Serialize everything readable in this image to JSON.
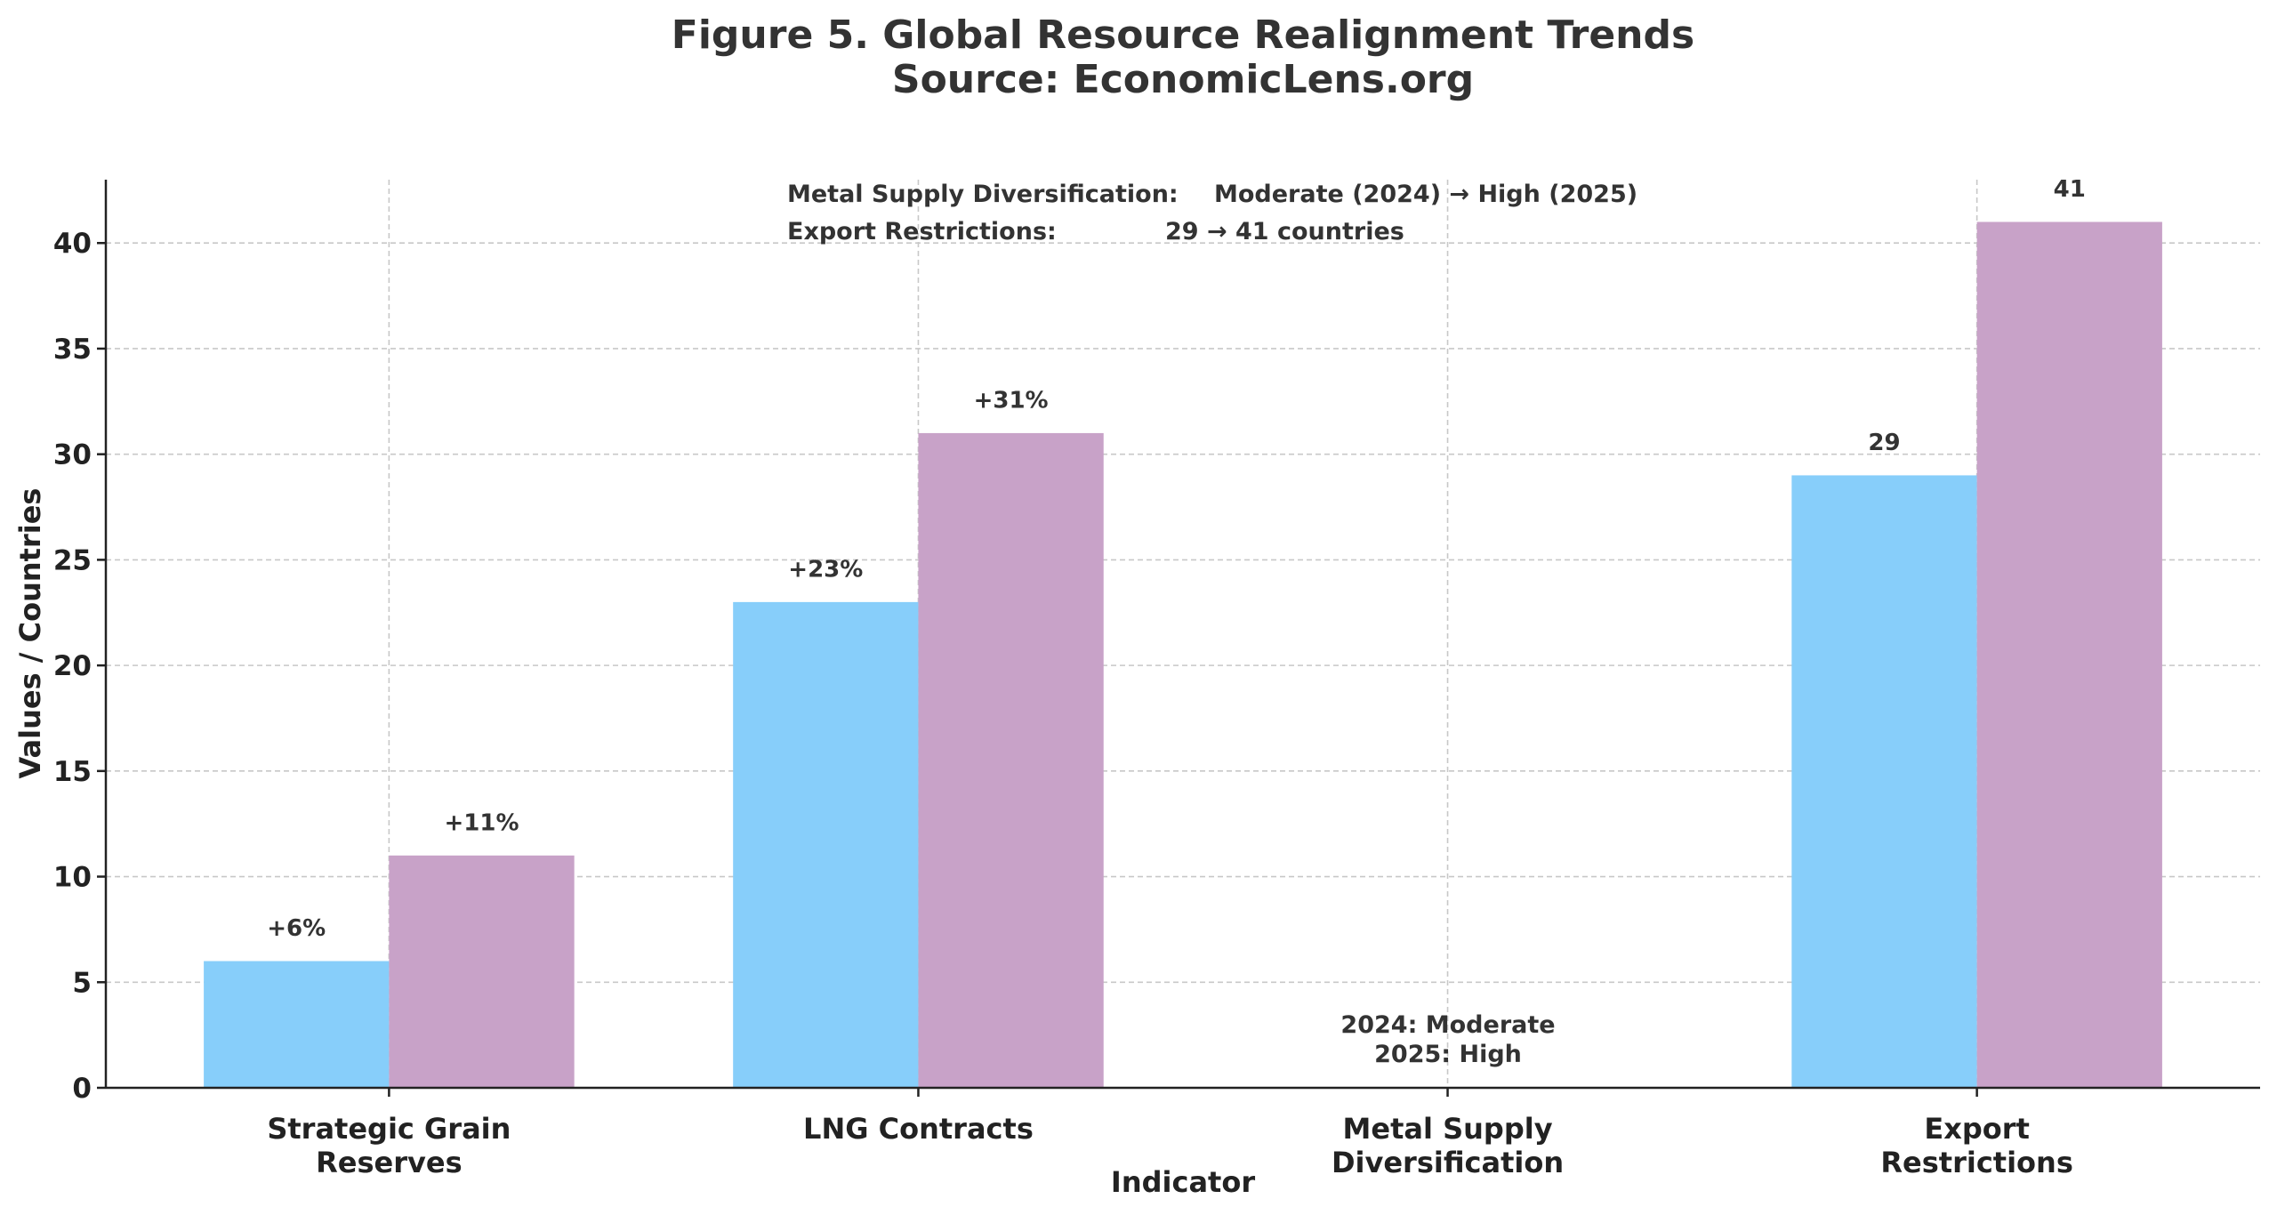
{
  "chart_data": {
    "type": "bar",
    "title": "Figure 5. Global Resource Realignment Trends",
    "subtitle": "Source: EconomicLens.org",
    "xlabel": "Indicator",
    "ylabel": "Values / Countries",
    "categories": [
      "Strategic Grain\nReserves",
      "LNG Contracts",
      "Metal Supply\nDiversification",
      "Export\nRestrictions"
    ],
    "series": [
      {
        "key": "2024",
        "color": "#87CEFA",
        "values": [
          6,
          23,
          null,
          29
        ],
        "labels": [
          "+6%",
          "+23%",
          "",
          "29"
        ]
      },
      {
        "key": "2025",
        "color": "#C8A2C8",
        "values": [
          11,
          31,
          null,
          41
        ],
        "labels": [
          "+11%",
          "+31%",
          "",
          "41"
        ]
      }
    ],
    "ylim": [
      0,
      43
    ],
    "yticks": [
      0,
      5,
      10,
      15,
      20,
      25,
      30,
      35,
      40
    ],
    "grid": true,
    "annotations": {
      "metal_bar_text": [
        "2024: Moderate",
        "2025: High"
      ],
      "summary": [
        {
          "label": "Metal Supply Diversification:",
          "value": "Moderate (2024) → High (2025)"
        },
        {
          "label": "Export Restrictions:",
          "value": "29 → 41 countries"
        }
      ]
    }
  }
}
